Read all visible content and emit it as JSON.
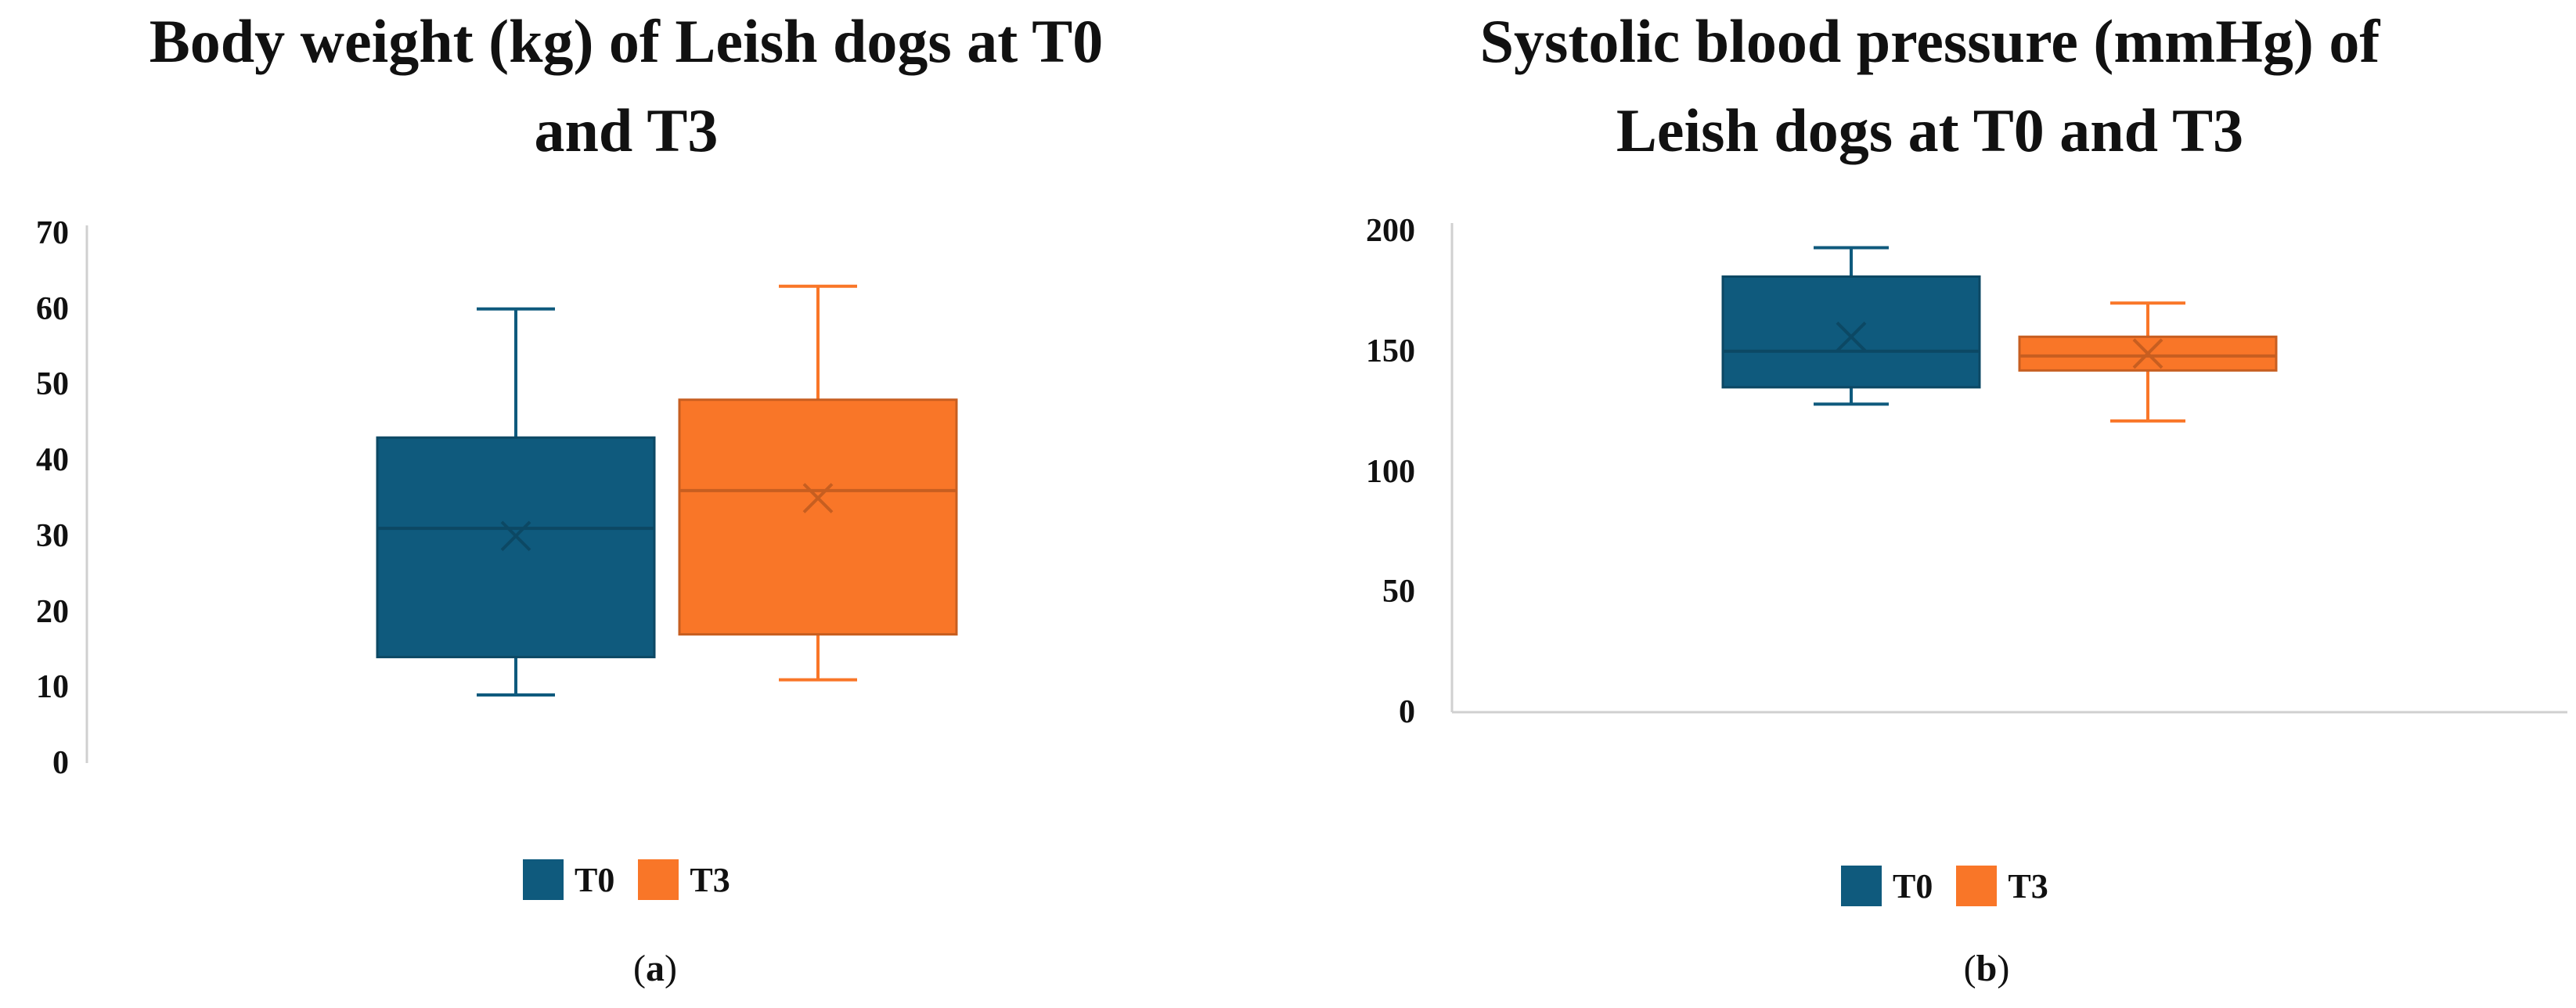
{
  "chart_data": [
    {
      "type": "box",
      "title": "Body weight (kg) of Leish dogs at T0 and T3",
      "title_lines": [
        "Body weight (kg) of Leish dogs at T0",
        "and T3"
      ],
      "ylim": [
        0,
        70
      ],
      "yticks": [
        "0",
        "10",
        "20",
        "30",
        "40",
        "50",
        "60",
        "70"
      ],
      "series": [
        {
          "name": "T0",
          "color": "#0f5a7d",
          "min": 9,
          "q1": 14,
          "median": 31,
          "q3": 43,
          "max": 60,
          "mean": 30
        },
        {
          "name": "T3",
          "color": "#f97628",
          "min": 11,
          "q1": 17,
          "median": 36,
          "q3": 48,
          "max": 63,
          "mean": 35
        }
      ],
      "legend_position": "bottom",
      "caption_letter": "a"
    },
    {
      "type": "box",
      "title": "Systolic blood pressure (mmHg) of Leish dogs at T0 and T3",
      "title_lines": [
        "Systolic blood pressure (mmHg) of",
        "Leish dogs at T0 and T3"
      ],
      "ylim": [
        0,
        200
      ],
      "yticks": [
        "0",
        "50",
        "100",
        "150",
        "200"
      ],
      "series": [
        {
          "name": "T0",
          "color": "#0f5a7d",
          "min": 128,
          "q1": 135,
          "median": 150,
          "q3": 181,
          "max": 193,
          "mean": 156
        },
        {
          "name": "T3",
          "color": "#f97628",
          "min": 121,
          "q1": 142,
          "median": 148,
          "q3": 156,
          "max": 170,
          "mean": 149
        },
        {
          "name": "",
          "color": "",
          "min": 0,
          "q1": 0,
          "median": 0,
          "q3": 0,
          "max": 0,
          "mean": 0
        }
      ],
      "legend_position": "bottom",
      "caption_letter": "b"
    }
  ]
}
